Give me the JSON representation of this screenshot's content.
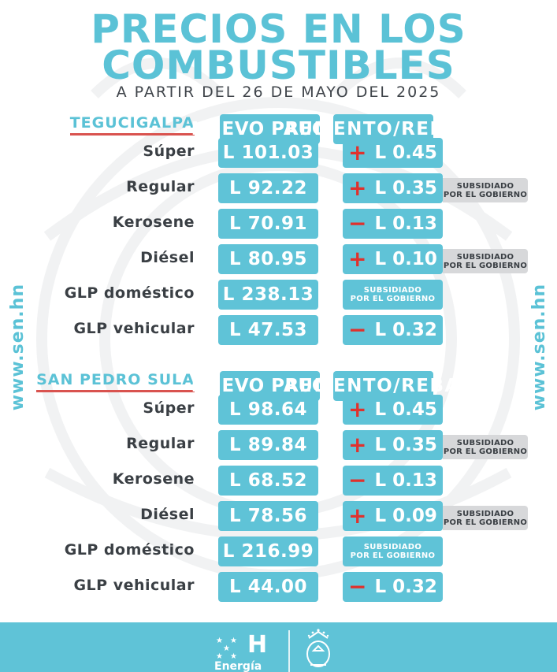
{
  "title": {
    "line1": "PRECIOS EN LOS",
    "line2": "COMBUSTIBLES",
    "subtitle": "A PARTIR DEL 26 DE MAYO DEL 2025"
  },
  "side_url": "www.sen.hn",
  "column_headers": {
    "price": "NUEVO PRECIO",
    "change": "AUMENTO/REBAJA"
  },
  "subsidy_text": {
    "line1": "SUBSIDIADO",
    "line2": "POR EL GOBIERNO"
  },
  "colors": {
    "accent": "#5fc3d7",
    "increase": "#e0312d",
    "underline": "#d9534f",
    "note_bg": "#d7d8da"
  },
  "sections": [
    {
      "city": "TEGUCIGALPA",
      "rows": [
        {
          "fuel": "Súper",
          "price": "L 101.03",
          "sign": "+",
          "change": "L 0.45",
          "subsidized_change": false,
          "note": false
        },
        {
          "fuel": "Regular",
          "price": "L 92.22",
          "sign": "+",
          "change": "L 0.35",
          "subsidized_change": false,
          "note": true
        },
        {
          "fuel": "Kerosene",
          "price": "L 70.91",
          "sign": "−",
          "change": "L 0.13",
          "subsidized_change": false,
          "note": false
        },
        {
          "fuel": "Diésel",
          "price": "L 80.95",
          "sign": "+",
          "change": "L 0.10",
          "subsidized_change": false,
          "note": true
        },
        {
          "fuel": "GLP doméstico",
          "price": "L 238.13",
          "sign": "",
          "change": "",
          "subsidized_change": true,
          "note": false
        },
        {
          "fuel": "GLP vehicular",
          "price": "L 47.53",
          "sign": "−",
          "change": "L 0.32",
          "subsidized_change": false,
          "note": false
        }
      ]
    },
    {
      "city": "SAN PEDRO SULA",
      "rows": [
        {
          "fuel": "Súper",
          "price": "L 98.64",
          "sign": "+",
          "change": "L 0.45",
          "subsidized_change": false,
          "note": false
        },
        {
          "fuel": "Regular",
          "price": "L 89.84",
          "sign": "+",
          "change": "L 0.35",
          "subsidized_change": false,
          "note": true
        },
        {
          "fuel": "Kerosene",
          "price": "L 68.52",
          "sign": "−",
          "change": "L 0.13",
          "subsidized_change": false,
          "note": false
        },
        {
          "fuel": "Diésel",
          "price": "L 78.56",
          "sign": "+",
          "change": "L 0.09",
          "subsidized_change": false,
          "note": true
        },
        {
          "fuel": "GLP doméstico",
          "price": "L 216.99",
          "sign": "",
          "change": "",
          "subsidized_change": true,
          "note": false
        },
        {
          "fuel": "GLP vehicular",
          "price": "L 44.00",
          "sign": "−",
          "change": "L 0.32",
          "subsidized_change": false,
          "note": false
        }
      ]
    }
  ],
  "footer": {
    "brand_letter": "H",
    "brand_label": "Energía"
  }
}
